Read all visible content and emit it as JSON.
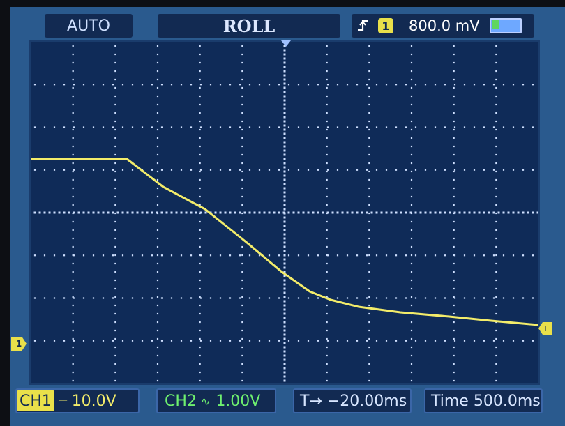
{
  "header": {
    "mode": "AUTO",
    "acquisition": "ROLL",
    "trigger_source": "1",
    "trigger_level": "800.0 mV"
  },
  "icons": {
    "trigger_edge": "rising-edge-icon",
    "battery": "battery-icon"
  },
  "markers": {
    "ch1": "1",
    "trigger_level": "T"
  },
  "footer": {
    "ch1_label": "CH1",
    "ch1_coupling": "⎓",
    "ch1_scale": "10.0V",
    "ch2_label": "CH2",
    "ch2_coupling": "∿",
    "ch2_scale": "1.00V",
    "trigger_offset": "T→ −20.00ms",
    "timebase": "Time 500.0ms"
  },
  "colors": {
    "screen": "#2a5a8e",
    "plot": "#0f2b58",
    "ch1": "#f3ec6a",
    "ch2": "#6ff06f",
    "grid": "#cfe0ff"
  }
}
